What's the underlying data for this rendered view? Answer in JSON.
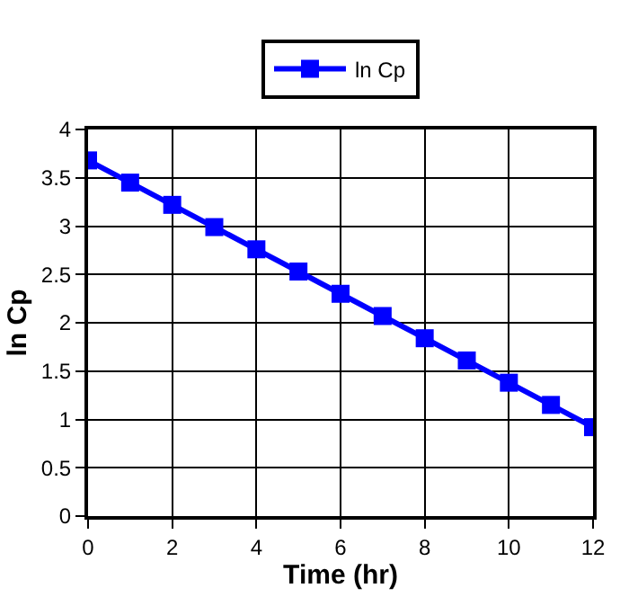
{
  "chart_data": {
    "type": "line",
    "xlabel": "Time (hr)",
    "ylabel": "ln Cp",
    "x": [
      0,
      1,
      2,
      3,
      4,
      5,
      6,
      7,
      8,
      9,
      10,
      11,
      12
    ],
    "series": [
      {
        "name": "ln Cp",
        "color": "#0000ff",
        "values": [
          3.68,
          3.45,
          3.22,
          2.99,
          2.76,
          2.53,
          2.3,
          2.07,
          1.84,
          1.61,
          1.38,
          1.15,
          0.92
        ]
      }
    ],
    "xlim": [
      0,
      12
    ],
    "xticks": [
      0,
      2,
      4,
      6,
      8,
      10,
      12
    ],
    "ylim": [
      0,
      4
    ],
    "yticks": [
      0,
      0.5,
      1,
      1.5,
      2,
      2.5,
      3,
      3.5,
      4
    ],
    "grid": true,
    "legend": "top",
    "marker": "square",
    "line_style": "solid"
  }
}
